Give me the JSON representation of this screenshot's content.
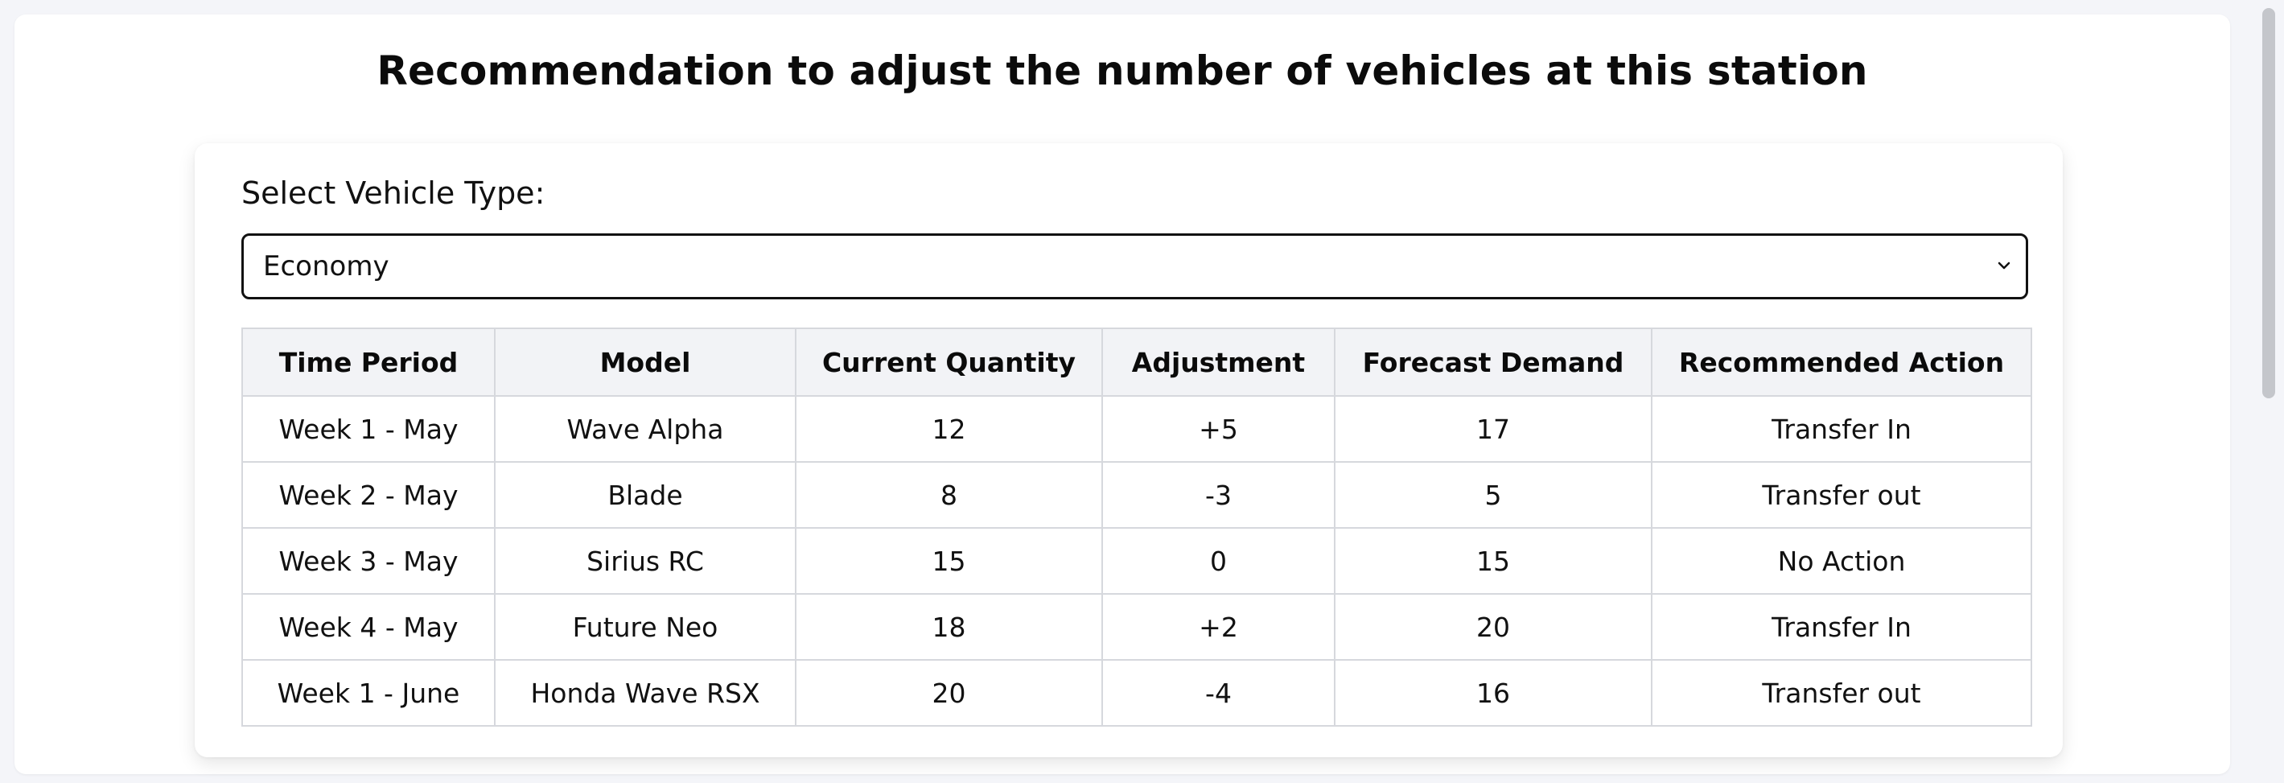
{
  "page": {
    "title": "Recommendation to adjust the number of vehicles at this station"
  },
  "vehicle_select": {
    "label": "Select Vehicle Type:",
    "selected": "Economy"
  },
  "table": {
    "headers": [
      "Time Period",
      "Model",
      "Current Quantity",
      "Adjustment",
      "Forecast Demand",
      "Recommended Action"
    ],
    "rows": [
      {
        "period": "Week 1 - May",
        "model": "Wave Alpha",
        "quantity": "12",
        "adjustment": "+5",
        "adjustment_status": "positive",
        "forecast": "17",
        "action": "Transfer In"
      },
      {
        "period": "Week 2 - May",
        "model": "Blade",
        "quantity": "8",
        "adjustment": "-3",
        "adjustment_status": "negative",
        "forecast": "5",
        "action": "Transfer out"
      },
      {
        "period": "Week 3 - May",
        "model": "Sirius RC",
        "quantity": "15",
        "adjustment": "0",
        "adjustment_status": "negative",
        "forecast": "15",
        "action": "No Action"
      },
      {
        "period": "Week 4 - May",
        "model": "Future Neo",
        "quantity": "18",
        "adjustment": "+2",
        "adjustment_status": "positive",
        "forecast": "20",
        "action": "Transfer In"
      },
      {
        "period": "Week 1 - June",
        "model": "Honda Wave RSX",
        "quantity": "20",
        "adjustment": "-4",
        "adjustment_status": "negative",
        "forecast": "16",
        "action": "Transfer out"
      }
    ]
  },
  "colors": {
    "positive": "#16a34a",
    "negative": "#e11d2e"
  }
}
